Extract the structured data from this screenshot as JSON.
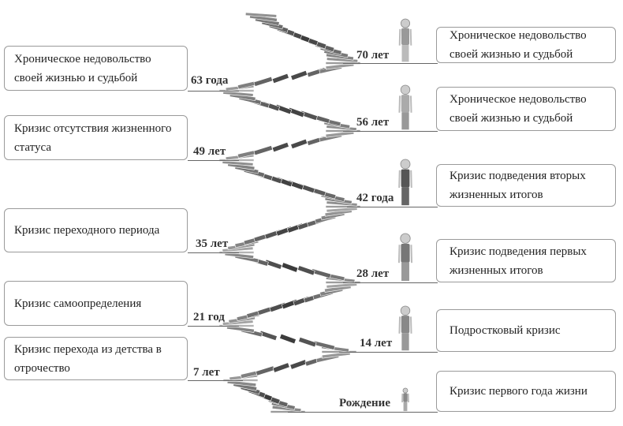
{
  "left": [
    {
      "age": "63 года",
      "text": "Хроническое недовольство своей жизнью и судьбой"
    },
    {
      "age": "49 лет",
      "text": "Кризис отсутствия жизненного статуса"
    },
    {
      "age": "35 лет",
      "text": "Кризис переходного периода"
    },
    {
      "age": "21 год",
      "text": "Кризис самоопределения"
    },
    {
      "age": "7 лет",
      "text": "Кризис перехода из детства в отрочество"
    }
  ],
  "right": [
    {
      "age": "70 лет",
      "text": "Хроническое недовольство своей жизнью и судьбой"
    },
    {
      "age": "56 лет",
      "text": "Хроническое недовольство своей жизнью и судьбой"
    },
    {
      "age": "42 года",
      "text": "Кризис подведения вторых жизненных итогов"
    },
    {
      "age": "28 лет",
      "text": "Кризис подведения первых жизненных итогов"
    },
    {
      "age": "14 лет",
      "text": "Подростковый кризис"
    },
    {
      "age": "Рождение",
      "text": "Кризис первого года жизни"
    }
  ]
}
